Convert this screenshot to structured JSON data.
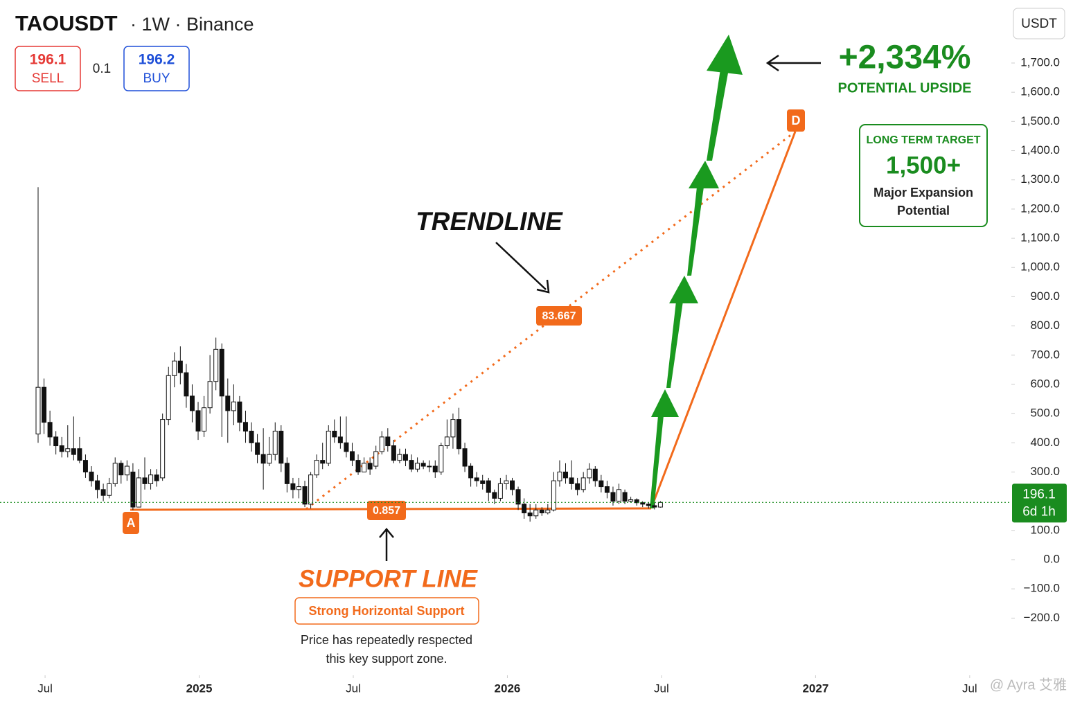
{
  "chart_data": {
    "type": "candlestick",
    "title": "TAOUSDT",
    "subtitle": "· 1W · Binance",
    "sell": {
      "price": "196.1",
      "label": "SELL"
    },
    "spread": "0.1",
    "buy": {
      "price": "196.2",
      "label": "BUY"
    },
    "currency": "USDT",
    "last_price": {
      "value": 196.1,
      "label": "196.1",
      "countdown": "6d 1h"
    },
    "up_color": "#ffffff",
    "down_color": "#111111",
    "outline_color": "#111111",
    "ylim": [
      -384,
      1892
    ],
    "yticks": [
      {
        "value": 1700,
        "label": "1,700.0"
      },
      {
        "value": 1600,
        "label": "1,600.0"
      },
      {
        "value": 1500,
        "label": "1,500.0"
      },
      {
        "value": 1400,
        "label": "1,400.0"
      },
      {
        "value": 1300,
        "label": "1,300.0"
      },
      {
        "value": 1200,
        "label": "1,200.0"
      },
      {
        "value": 1100,
        "label": "1,100.0"
      },
      {
        "value": 1000,
        "label": "1,000.0"
      },
      {
        "value": 900,
        "label": "900.0"
      },
      {
        "value": 800,
        "label": "800.0"
      },
      {
        "value": 700,
        "label": "700.0"
      },
      {
        "value": 600,
        "label": "600.0"
      },
      {
        "value": 500,
        "label": "500.0"
      },
      {
        "value": 400,
        "label": "400.0"
      },
      {
        "value": 300,
        "label": "300.0"
      },
      {
        "value": 100,
        "label": "100.0"
      },
      {
        "value": 0,
        "label": "0.0"
      },
      {
        "value": -100,
        "label": "−100.0"
      },
      {
        "value": -200,
        "label": "−200.0"
      }
    ],
    "xlim": [
      "2024-06",
      "2027-09"
    ],
    "xticks": [
      {
        "value": "2024-07",
        "label": "Jul"
      },
      {
        "value": "2025-01",
        "label": "2025"
      },
      {
        "value": "2025-07",
        "label": "Jul"
      },
      {
        "value": "2026-01",
        "label": "2026"
      },
      {
        "value": "2026-07",
        "label": "Jul"
      },
      {
        "value": "2027-01",
        "label": "2027"
      },
      {
        "value": "2027-07",
        "label": "Jul"
      }
    ],
    "ohlc": [
      [
        430,
        1275,
        400,
        590
      ],
      [
        590,
        620,
        430,
        470
      ],
      [
        470,
        510,
        390,
        420
      ],
      [
        420,
        440,
        360,
        390
      ],
      [
        390,
        420,
        350,
        370
      ],
      [
        370,
        460,
        350,
        380
      ],
      [
        380,
        490,
        340,
        360
      ],
      [
        380,
        420,
        330,
        340
      ],
      [
        340,
        360,
        280,
        300
      ],
      [
        300,
        320,
        250,
        270
      ],
      [
        270,
        290,
        210,
        240
      ],
      [
        240,
        260,
        200,
        220
      ],
      [
        220,
        280,
        210,
        260
      ],
      [
        260,
        350,
        250,
        330
      ],
      [
        330,
        340,
        260,
        290
      ],
      [
        290,
        340,
        270,
        320
      ],
      [
        300,
        330,
        170,
        180
      ],
      [
        180,
        310,
        180,
        280
      ],
      [
        280,
        350,
        240,
        260
      ],
      [
        260,
        310,
        240,
        290
      ],
      [
        290,
        310,
        250,
        270
      ],
      [
        280,
        500,
        270,
        480
      ],
      [
        480,
        660,
        460,
        630
      ],
      [
        630,
        710,
        590,
        680
      ],
      [
        680,
        730,
        600,
        640
      ],
      [
        640,
        670,
        520,
        560
      ],
      [
        560,
        600,
        470,
        510
      ],
      [
        510,
        540,
        410,
        440
      ],
      [
        440,
        560,
        420,
        520
      ],
      [
        520,
        700,
        500,
        610
      ],
      [
        610,
        760,
        580,
        720
      ],
      [
        720,
        740,
        420,
        560
      ],
      [
        560,
        620,
        400,
        510
      ],
      [
        510,
        600,
        460,
        540
      ],
      [
        540,
        560,
        440,
        470
      ],
      [
        470,
        510,
        400,
        440
      ],
      [
        440,
        470,
        370,
        400
      ],
      [
        400,
        430,
        330,
        360
      ],
      [
        360,
        450,
        240,
        330
      ],
      [
        330,
        420,
        320,
        360
      ],
      [
        360,
        470,
        340,
        440
      ],
      [
        440,
        460,
        300,
        330
      ],
      [
        330,
        350,
        230,
        260
      ],
      [
        260,
        280,
        210,
        240
      ],
      [
        240,
        280,
        210,
        250
      ],
      [
        250,
        270,
        180,
        190
      ],
      [
        190,
        300,
        175,
        290
      ],
      [
        290,
        360,
        280,
        340
      ],
      [
        340,
        400,
        310,
        330
      ],
      [
        330,
        460,
        320,
        440
      ],
      [
        440,
        480,
        400,
        420
      ],
      [
        420,
        490,
        380,
        400
      ],
      [
        400,
        490,
        350,
        370
      ],
      [
        370,
        400,
        320,
        340
      ],
      [
        340,
        360,
        290,
        300
      ],
      [
        300,
        350,
        300,
        330
      ],
      [
        330,
        350,
        290,
        310
      ],
      [
        320,
        390,
        310,
        370
      ],
      [
        370,
        440,
        360,
        420
      ],
      [
        420,
        450,
        370,
        390
      ],
      [
        390,
        410,
        330,
        340
      ],
      [
        340,
        380,
        330,
        360
      ],
      [
        360,
        380,
        320,
        340
      ],
      [
        340,
        360,
        300,
        310
      ],
      [
        310,
        350,
        300,
        330
      ],
      [
        330,
        340,
        310,
        320
      ],
      [
        320,
        340,
        300,
        320
      ],
      [
        320,
        340,
        280,
        300
      ],
      [
        300,
        400,
        290,
        390
      ],
      [
        390,
        480,
        380,
        420
      ],
      [
        420,
        500,
        380,
        480
      ],
      [
        480,
        520,
        360,
        380
      ],
      [
        380,
        400,
        300,
        320
      ],
      [
        320,
        330,
        250,
        280
      ],
      [
        280,
        300,
        250,
        270
      ],
      [
        270,
        290,
        240,
        260
      ],
      [
        270,
        280,
        200,
        230
      ],
      [
        230,
        240,
        190,
        210
      ],
      [
        210,
        280,
        200,
        260
      ],
      [
        260,
        290,
        240,
        270
      ],
      [
        270,
        280,
        220,
        240
      ],
      [
        240,
        250,
        170,
        190
      ],
      [
        190,
        210,
        140,
        160
      ],
      [
        160,
        190,
        130,
        150
      ],
      [
        150,
        190,
        140,
        170
      ],
      [
        170,
        180,
        150,
        160
      ],
      [
        160,
        190,
        155,
        170
      ],
      [
        170,
        300,
        165,
        270
      ],
      [
        270,
        340,
        250,
        300
      ],
      [
        300,
        330,
        260,
        280
      ],
      [
        280,
        340,
        240,
        260
      ],
      [
        260,
        280,
        220,
        240
      ],
      [
        240,
        300,
        230,
        280
      ],
      [
        280,
        330,
        260,
        310
      ],
      [
        310,
        320,
        250,
        270
      ],
      [
        270,
        290,
        230,
        250
      ],
      [
        250,
        270,
        210,
        230
      ],
      [
        230,
        250,
        185,
        200
      ],
      [
        200,
        260,
        190,
        240
      ],
      [
        230,
        240,
        190,
        200
      ],
      [
        200,
        215,
        195,
        205
      ],
      [
        205,
        210,
        185,
        195
      ],
      [
        195,
        200,
        180,
        190
      ],
      [
        190,
        195,
        175,
        185
      ],
      [
        185,
        195,
        172,
        180
      ],
      [
        180,
        200,
        178,
        196.1
      ]
    ],
    "annotations": {
      "point_a": "A",
      "point_d": "D",
      "trend_value": "83.667",
      "support_value": "0.857",
      "trendline": "TRENDLINE",
      "support_title": "SUPPORT LINE",
      "support_box": "Strong Horizontal Support",
      "support_note": [
        "Price has repeatedly respected",
        "this key support zone."
      ],
      "upside": "+2,334%",
      "upside_label": "POTENTIAL UPSIDE",
      "target_title": "LONG TERM TARGET",
      "target_value": "1,500+",
      "target_note": [
        "Major Expansion",
        "Potential"
      ]
    },
    "watermark": "@ Ayra 艾雅"
  }
}
